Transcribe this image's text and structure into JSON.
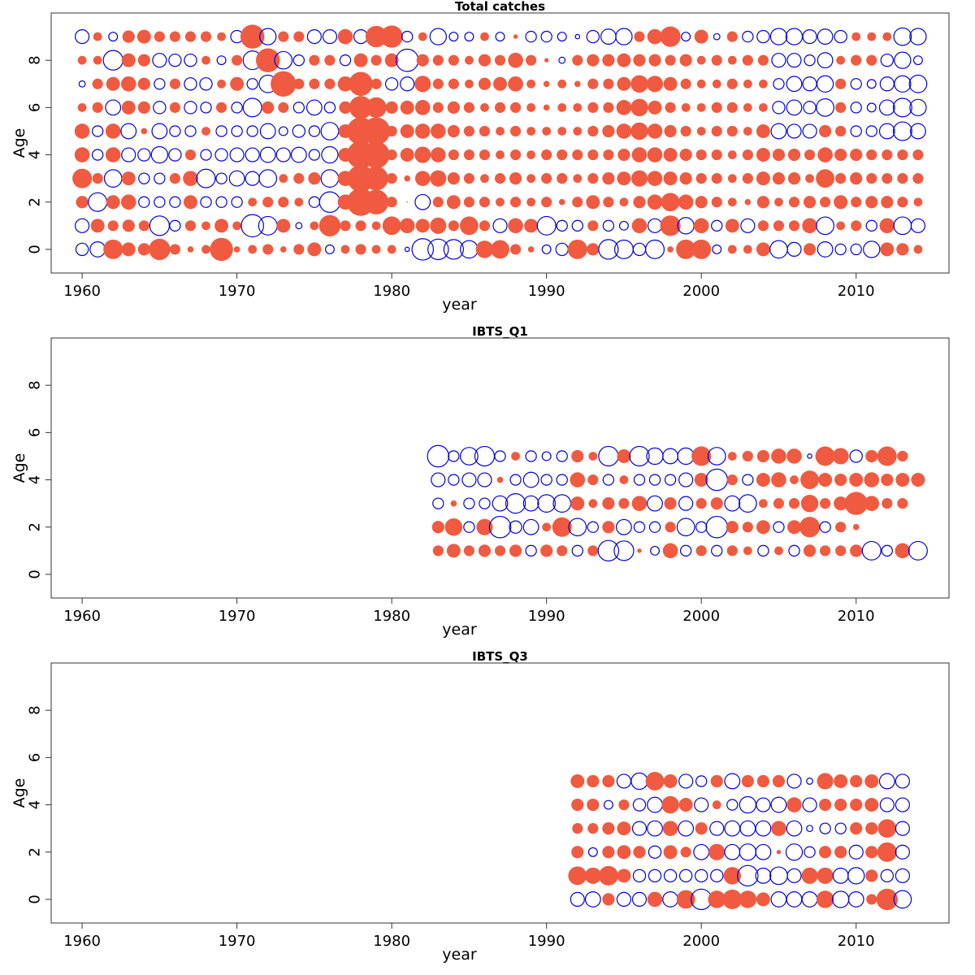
{
  "colors": {
    "positive": "#f05a40",
    "negative": "#0000e0"
  },
  "chart_data": [
    {
      "type": "scatter",
      "title": "Total catches",
      "xlabel": "year",
      "ylabel": "Age",
      "xlim": [
        1958,
        2016
      ],
      "ylim": [
        -1,
        10
      ],
      "xticks": [
        "1960",
        "1970",
        "1980",
        "1990",
        "2000",
        "2010"
      ],
      "yticks": [
        "0",
        "2",
        "4",
        "6",
        "8"
      ],
      "x_start": 1960,
      "ages": [
        0,
        1,
        2,
        3,
        4,
        5,
        6,
        7,
        8,
        9
      ],
      "residuals": [
        [
          -0.4,
          -0.6,
          1.0,
          0.5,
          0.4,
          1.2,
          0.3,
          0.1,
          0.2,
          1.4,
          0.1,
          0.2,
          0.3,
          0.1,
          0.3,
          0.5,
          -0.2,
          0.2,
          0.3,
          0.2,
          0.2,
          -0.05,
          -1.2,
          -1.1,
          -1.0,
          -0.8,
          0.8,
          0.9,
          0.3,
          0.1,
          -0.2,
          -0.4,
          1.0,
          0.4,
          -1.0,
          -0.9,
          -0.4,
          -0.9,
          0.1,
          1.0,
          1.0,
          -0.2,
          0.2,
          0.2,
          0.5,
          -0.8,
          -0.5,
          0.4,
          -0.6,
          -0.3,
          -0.3,
          -0.7,
          0.5,
          0.4,
          0.2
        ],
        [
          -0.5,
          0.5,
          0.3,
          0.4,
          0.3,
          -1.0,
          -0.3,
          0.3,
          0.2,
          0.5,
          0.2,
          -1.3,
          -0.9,
          0.5,
          -0.1,
          0.2,
          1.2,
          0.3,
          0.3,
          0.2,
          0.9,
          0.6,
          0.5,
          0.7,
          0.3,
          0.9,
          0.3,
          -0.5,
          0.6,
          0.5,
          -0.9,
          -0.3,
          -0.3,
          0.3,
          -0.3,
          -0.2,
          0.6,
          -0.5,
          1.1,
          -0.7,
          0.6,
          -0.3,
          0.5,
          -0.5,
          0.3,
          0.3,
          0.3,
          0.6,
          -0.8,
          0.2,
          0.3,
          -0.3,
          0.6,
          -0.8,
          -0.5
        ],
        [
          0.4,
          -0.9,
          0.5,
          0.6,
          -0.3,
          -0.3,
          -0.3,
          0.5,
          -0.3,
          -0.3,
          -0.3,
          0.2,
          0.3,
          0.3,
          0.2,
          -0.3,
          -1.1,
          0.6,
          2.0,
          1.6,
          0.3,
          0.0,
          -0.6,
          0.3,
          0.5,
          0.3,
          0.3,
          0.2,
          0.3,
          0.2,
          0.3,
          0.1,
          0.3,
          0.5,
          0.3,
          0.2,
          0.4,
          0.6,
          0.9,
          0.6,
          0.4,
          0.3,
          0.2,
          0.1,
          0.4,
          0.2,
          0.3,
          0.4,
          0.3,
          0.5,
          0.3,
          0.4,
          0.4,
          0.3,
          0.2
        ],
        [
          1.0,
          0.3,
          -0.8,
          0.5,
          -0.3,
          -0.3,
          0.3,
          0.6,
          -0.9,
          -0.3,
          -0.6,
          -0.5,
          -0.8,
          0.2,
          0.3,
          0.4,
          -0.8,
          0.6,
          1.9,
          1.5,
          0.3,
          0.1,
          0.6,
          0.7,
          0.4,
          0.3,
          0.2,
          0.3,
          0.4,
          0.2,
          0.3,
          0.3,
          0.2,
          0.3,
          0.4,
          0.5,
          0.7,
          0.6,
          0.5,
          0.4,
          0.3,
          0.3,
          0.2,
          0.3,
          0.5,
          0.4,
          0.4,
          0.2,
          0.9,
          0.3,
          0.4,
          0.3,
          0.3,
          0.3,
          0.3
        ],
        [
          0.6,
          -0.3,
          0.6,
          -0.5,
          -0.4,
          -0.7,
          -0.4,
          0.3,
          -0.3,
          -0.4,
          -0.5,
          -0.5,
          -0.6,
          -0.5,
          -0.6,
          -0.3,
          -0.7,
          0.5,
          2.0,
          1.9,
          0.3,
          0.5,
          0.7,
          0.6,
          0.3,
          0.3,
          0.3,
          0.2,
          0.3,
          0.2,
          0.3,
          0.3,
          0.3,
          0.3,
          0.3,
          0.4,
          0.6,
          0.6,
          0.5,
          0.4,
          0.3,
          0.3,
          0.2,
          0.3,
          0.5,
          0.4,
          0.4,
          0.3,
          0.6,
          0.4,
          0.4,
          0.3,
          0.3,
          0.3,
          0.3
        ],
        [
          0.6,
          -0.3,
          0.6,
          -0.6,
          0.1,
          -0.6,
          -0.3,
          -0.3,
          0.2,
          -0.3,
          -0.3,
          -0.3,
          -0.6,
          -0.2,
          -0.4,
          -0.3,
          -0.8,
          0.5,
          2.0,
          2.0,
          0.3,
          0.5,
          0.6,
          0.6,
          0.4,
          0.3,
          0.3,
          0.2,
          0.3,
          0.2,
          0.2,
          0.2,
          0.2,
          0.3,
          0.4,
          0.6,
          0.8,
          0.6,
          0.4,
          0.3,
          0.2,
          0.3,
          0.3,
          0.2,
          0.5,
          -0.6,
          -0.5,
          -0.5,
          0.4,
          0.3,
          -0.3,
          -0.3,
          -0.6,
          -0.9,
          -0.6
        ],
        [
          0.2,
          0.3,
          -0.6,
          0.5,
          0.4,
          -0.4,
          0.3,
          -0.4,
          -0.3,
          0.3,
          -0.3,
          -0.9,
          0.4,
          0.3,
          -0.3,
          -0.6,
          -0.3,
          0.4,
          1.4,
          1.1,
          0.4,
          0.5,
          0.6,
          0.3,
          0.4,
          0.3,
          0.2,
          0.3,
          0.3,
          0.2,
          0.1,
          0.2,
          0.2,
          0.3,
          0.3,
          0.6,
          0.8,
          0.5,
          0.3,
          0.2,
          0.2,
          0.3,
          0.3,
          0.2,
          0.2,
          -0.4,
          -0.6,
          -0.4,
          -0.8,
          0.3,
          -0.3,
          -0.2,
          -0.6,
          -0.9,
          -0.7
        ],
        [
          -0.1,
          0.3,
          0.5,
          0.6,
          0.4,
          -0.3,
          0.3,
          -0.4,
          -0.4,
          0.2,
          0.5,
          -0.3,
          -0.8,
          1.7,
          0.3,
          0.3,
          0.3,
          0.6,
          1.5,
          0.3,
          -0.4,
          -0.5,
          0.7,
          0.3,
          0.3,
          0.2,
          0.4,
          0.5,
          0.6,
          0.2,
          0.1,
          0.2,
          0.1,
          0.3,
          0.3,
          0.5,
          0.8,
          0.7,
          0.5,
          0.3,
          0.2,
          0.2,
          0.3,
          0.2,
          0.2,
          -0.3,
          -0.6,
          -0.5,
          -0.7,
          0.3,
          -0.3,
          -0.2,
          -0.5,
          -0.7,
          -0.8
        ],
        [
          0.2,
          0.2,
          -1.0,
          0.5,
          0.4,
          -0.5,
          -0.4,
          -0.4,
          0.2,
          -0.2,
          0.3,
          -0.9,
          1.5,
          -0.8,
          -0.3,
          0.3,
          0.3,
          -0.3,
          0.5,
          0.3,
          0.5,
          -1.3,
          0.4,
          0.3,
          0.3,
          0.2,
          0.4,
          0.3,
          0.6,
          0.3,
          0.05,
          -0.1,
          0.3,
          0.4,
          0.4,
          0.5,
          0.4,
          0.4,
          0.3,
          0.4,
          0.2,
          0.3,
          0.2,
          0.3,
          0.3,
          -0.5,
          -0.5,
          -0.3,
          -0.6,
          0.2,
          0.3,
          0.3,
          -0.4,
          -0.7,
          -0.2
        ],
        [
          -0.5,
          0.2,
          -0.2,
          0.4,
          0.5,
          0.3,
          0.3,
          0.3,
          0.3,
          0.2,
          -0.4,
          1.5,
          -0.7,
          0.3,
          0.3,
          -0.5,
          -0.5,
          0.6,
          -0.5,
          1.2,
          1.3,
          -0.3,
          0.2,
          -0.7,
          -0.2,
          -0.2,
          0.2,
          -0.2,
          0.05,
          -0.3,
          -0.3,
          -0.2,
          -0.05,
          -0.4,
          -0.6,
          -0.7,
          0.3,
          0.6,
          1.1,
          -0.2,
          0.5,
          -0.1,
          0.3,
          -0.3,
          -0.4,
          -0.7,
          -0.7,
          -0.5,
          -0.6,
          -0.4,
          0.2,
          0.2,
          0.2,
          -0.8,
          -0.7
        ]
      ]
    },
    {
      "type": "scatter",
      "title": "IBTS_Q1",
      "xlabel": "year",
      "ylabel": "Age",
      "xlim": [
        1958,
        2016
      ],
      "ylim": [
        -1,
        10
      ],
      "xticks": [
        "1960",
        "1970",
        "1980",
        "1990",
        "2000",
        "2010"
      ],
      "yticks": [
        "0",
        "2",
        "4",
        "6",
        "8"
      ],
      "x_start": 1983,
      "ages": [
        1,
        2,
        3,
        4,
        5
      ],
      "residuals": [
        [
          0.3,
          0.5,
          0.3,
          0.4,
          0.3,
          0.4,
          -0.3,
          0.4,
          0.3,
          -0.3,
          0.3,
          -1.1,
          -1.0,
          0.05,
          -0.2,
          0.6,
          -0.3,
          0.3,
          -0.3,
          0.3,
          0.2,
          -0.3,
          0.2,
          -0.3,
          0.4,
          0.3,
          0.3,
          0.4,
          -0.9,
          -0.3,
          0.6,
          -0.9
        ],
        [
          0.4,
          0.8,
          -0.3,
          0.7,
          -1.2,
          -0.4,
          -0.6,
          0.2,
          1.0,
          -0.8,
          -0.3,
          0.4,
          -0.6,
          -0.3,
          -0.3,
          0.3,
          -0.8,
          -0.3,
          -1.2,
          0.4,
          0.3,
          0.5,
          -0.3,
          0.5,
          1.1,
          -0.3,
          0.3,
          0.1
        ],
        [
          -0.3,
          0.1,
          -0.3,
          -0.3,
          -0.6,
          -1.0,
          -0.6,
          -0.8,
          -0.8,
          0.5,
          0.2,
          0.4,
          0.3,
          0.6,
          -0.6,
          0.4,
          -0.5,
          0.3,
          0.4,
          -0.6,
          -0.8,
          0.2,
          0.3,
          0.3,
          0.8,
          0.3,
          0.5,
          1.4,
          0.6,
          0.3,
          0.3
        ],
        [
          -0.5,
          -0.3,
          -0.5,
          -0.5,
          0.1,
          -0.3,
          -0.6,
          -0.3,
          -0.3,
          0.6,
          0.3,
          -0.3,
          0.2,
          -0.3,
          -0.3,
          -0.3,
          -0.5,
          0.5,
          -1.2,
          0.3,
          -0.3,
          0.5,
          0.6,
          0.2,
          0.9,
          0.5,
          0.4,
          0.5,
          0.6,
          0.4,
          0.5,
          0.5
        ],
        [
          -1.2,
          -0.3,
          -0.8,
          -1.0,
          -0.3,
          0.2,
          -0.3,
          -0.2,
          -0.3,
          0.4,
          0.2,
          -1.0,
          0.5,
          -1.0,
          -0.7,
          -0.6,
          -0.7,
          1.0,
          -0.8,
          0.2,
          0.3,
          0.4,
          0.6,
          0.6,
          -0.05,
          1.0,
          0.7,
          -0.4,
          0.4,
          1.0,
          0.3
        ]
      ]
    },
    {
      "type": "scatter",
      "title": "IBTS_Q3",
      "xlabel": "year",
      "ylabel": "Age",
      "xlim": [
        1958,
        2016
      ],
      "ylim": [
        -1,
        10
      ],
      "xticks": [
        "1960",
        "1970",
        "1980",
        "1990",
        "2000",
        "2010"
      ],
      "yticks": [
        "0",
        "2",
        "4",
        "6",
        "8"
      ],
      "x_start": 1992,
      "ages": [
        0,
        1,
        2,
        3,
        4,
        5
      ],
      "residuals": [
        [
          -0.5,
          -0.6,
          0.4,
          -0.5,
          -0.5,
          0.6,
          -0.6,
          0.9,
          -1.1,
          0.8,
          1.0,
          0.8,
          0.5,
          -0.6,
          -0.6,
          -0.6,
          0.8,
          -0.7,
          -0.6,
          0.3,
          1.2,
          -0.8
        ],
        [
          0.9,
          0.7,
          1.0,
          0.5,
          -0.4,
          -0.4,
          -0.4,
          -0.4,
          -0.4,
          -0.4,
          0.8,
          -1.1,
          -0.6,
          -0.8,
          -0.5,
          0.7,
          0.7,
          -0.6,
          -0.7,
          0.4,
          -0.4,
          -0.5
        ],
        [
          0.4,
          -0.2,
          0.4,
          0.5,
          0.4,
          -0.4,
          0.5,
          0.3,
          -0.6,
          0.7,
          -0.6,
          -0.7,
          -0.6,
          0.05,
          -0.7,
          -0.3,
          0.4,
          0.4,
          -0.5,
          0.4,
          1.0,
          -0.5
        ],
        [
          0.3,
          0.3,
          0.4,
          0.5,
          -0.5,
          -0.6,
          0.6,
          -0.6,
          0.4,
          -0.5,
          -0.6,
          -0.6,
          -0.6,
          0.6,
          -0.6,
          -0.1,
          -0.3,
          -0.3,
          0.4,
          0.4,
          0.9,
          -0.5
        ],
        [
          0.4,
          0.4,
          -0.2,
          0.3,
          -0.4,
          -0.6,
          0.8,
          0.5,
          -0.5,
          0.2,
          -0.3,
          -0.7,
          -0.5,
          -0.6,
          0.6,
          -0.5,
          0.4,
          0.4,
          0.4,
          0.5,
          -0.5,
          -0.5
        ],
        [
          0.5,
          0.4,
          0.4,
          -0.5,
          -0.7,
          0.9,
          0.5,
          -0.5,
          -0.3,
          0.4,
          -0.6,
          0.4,
          0.4,
          0.4,
          -0.5,
          -0.1,
          0.7,
          0.5,
          0.4,
          0.5,
          -0.6,
          -0.5
        ]
      ]
    }
  ]
}
